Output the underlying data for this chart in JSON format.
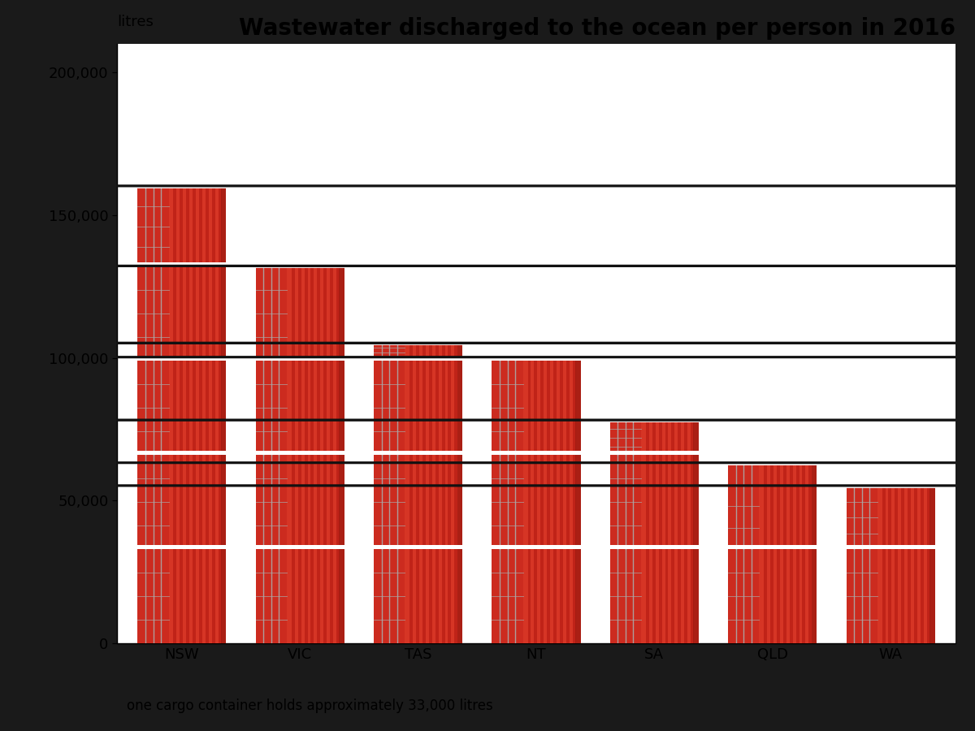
{
  "categories": [
    "NSW",
    "VIC",
    "TAS",
    "NT",
    "SA",
    "QLD",
    "WA"
  ],
  "values": [
    160000,
    132000,
    105000,
    100000,
    78000,
    63000,
    55000
  ],
  "container_capacity": 33000,
  "title": "Wastewater discharged to the ocean per person in 2016",
  "ylabel": "litres",
  "footnote": "one cargo container holds approximately 33,000 litres",
  "ylim": [
    0,
    210000
  ],
  "yticks": [
    0,
    50000,
    100000,
    150000,
    200000
  ],
  "ytick_labels": [
    "0",
    "50,000",
    "100,000",
    "150,000",
    "200,000"
  ],
  "bar_color_main": "#E8362A",
  "bar_color_left": "#D43020",
  "bar_color_right": "#C82010",
  "bar_color_stripe": "#CC2A1E",
  "container_border_color": "#FFFFFF",
  "grid_line_color": "#BBBBBB",
  "bg_color": "#FFFFFF",
  "outer_bg_color": "#1A1A1A",
  "title_fontsize": 20,
  "ylabel_fontsize": 13,
  "tick_fontsize": 13,
  "footnote_fontsize": 12,
  "person_color": "#111111"
}
